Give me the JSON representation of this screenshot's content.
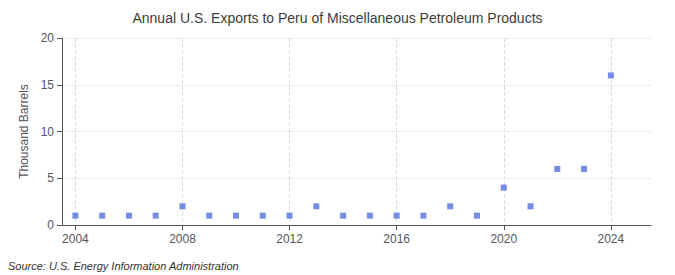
{
  "chart_data": {
    "type": "scatter",
    "title": "Annual U.S. Exports to Peru of Miscellaneous Petroleum Products",
    "ylabel": "Thousand Barrels",
    "annotations": [
      "Source: U.S. Energy Information Administration"
    ],
    "x": [
      2004,
      2005,
      2006,
      2007,
      2008,
      2009,
      2010,
      2011,
      2012,
      2013,
      2014,
      2015,
      2016,
      2017,
      2018,
      2019,
      2020,
      2021,
      2022,
      2023,
      2024
    ],
    "values": [
      1,
      1,
      1,
      1,
      2,
      1,
      1,
      1,
      1,
      2,
      1,
      1,
      1,
      1,
      2,
      1,
      4,
      2,
      6,
      6,
      16
    ],
    "xlim": [
      2003.5,
      2025.5
    ],
    "xticks": [
      2004,
      2008,
      2012,
      2016,
      2020,
      2024
    ],
    "ylim": [
      0,
      20
    ],
    "yticks": [
      0,
      5,
      10,
      15,
      20
    ],
    "marker": "square",
    "grid": true
  }
}
